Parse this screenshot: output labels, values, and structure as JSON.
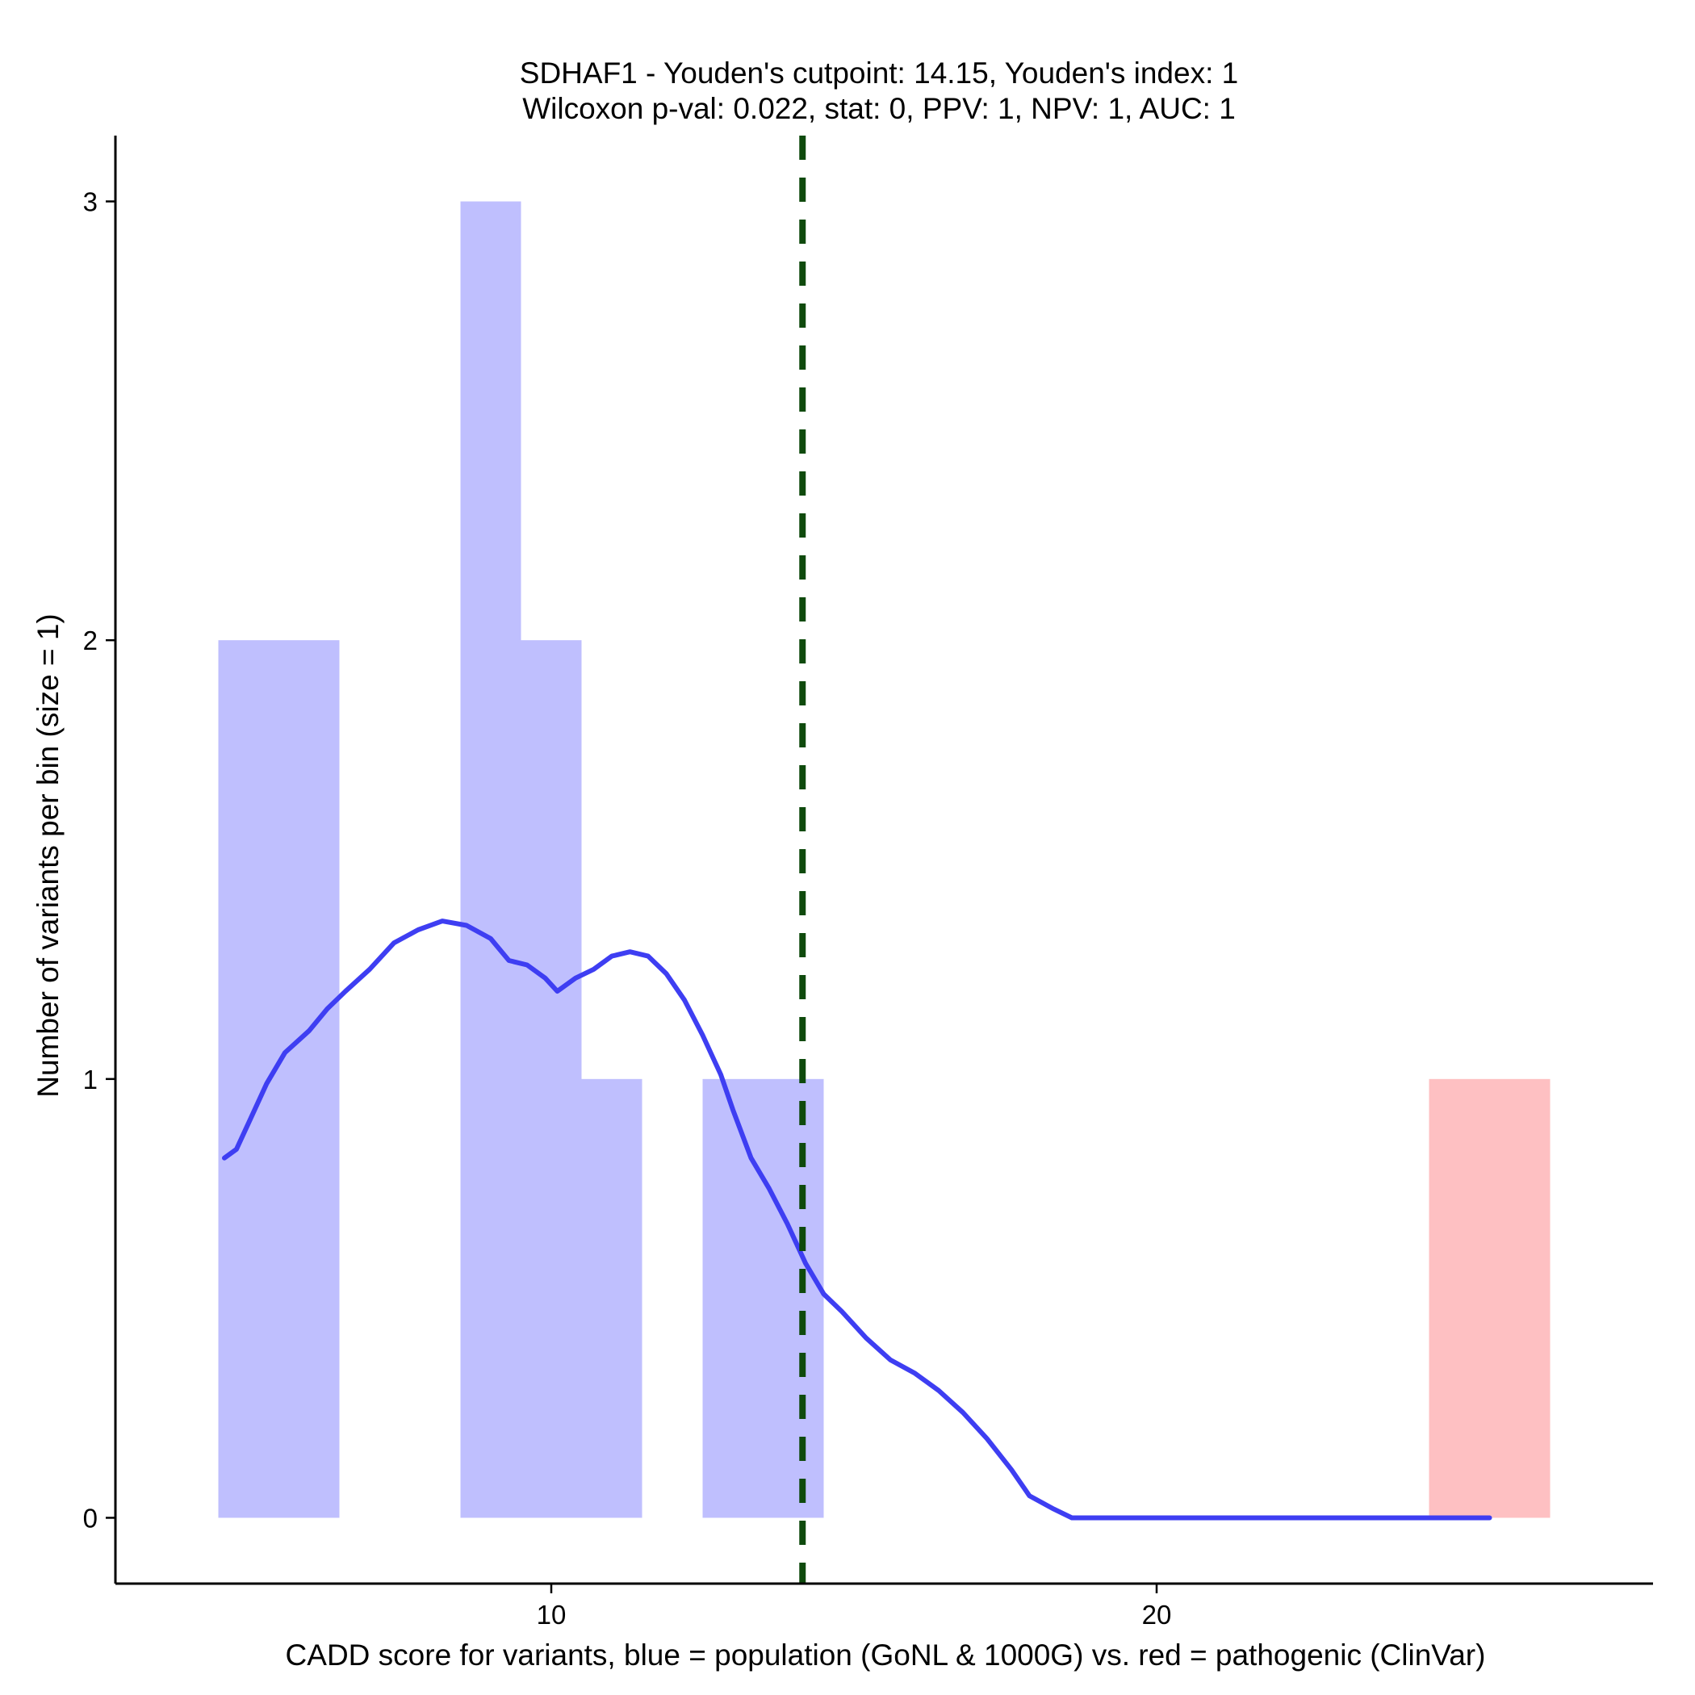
{
  "chart_data": {
    "type": "bar",
    "title": [
      "SDHAF1 - Youden's cutpoint: 14.15, Youden's index: 1",
      "Wilcoxon p-val: 0.022, stat: 0, PPV: 1, NPV: 1, AUC: 1"
    ],
    "xlabel": "CADD score for variants, blue = population (GoNL & 1000G) vs. red = pathogenic (ClinVar)",
    "ylabel": "Number of variants per bin (size = 1)",
    "xlim": [
      2.8,
      28.2
    ],
    "ylim": [
      -0.15,
      3.15
    ],
    "x_ticks": [
      10,
      20
    ],
    "y_ticks": [
      0,
      1,
      2,
      3
    ],
    "grid": false,
    "bin_width": 1,
    "series": [
      {
        "color": "#bfbffe",
        "bars": [
          {
            "x": 5,
            "count": 2
          },
          {
            "x": 6,
            "count": 2
          },
          {
            "x": 9,
            "count": 3
          },
          {
            "x": 10,
            "count": 2
          },
          {
            "x": 11,
            "count": 1
          },
          {
            "x": 13,
            "count": 1
          },
          {
            "x": 14,
            "count": 1
          }
        ]
      },
      {
        "color": "#fec0c2",
        "bars": [
          {
            "x": 25,
            "count": 1
          },
          {
            "x": 26,
            "count": 1
          }
        ]
      }
    ],
    "density_curve": {
      "color": "#3e3ef2",
      "points": [
        [
          4.6,
          0.82
        ],
        [
          4.8,
          0.84
        ],
        [
          5.0,
          0.9
        ],
        [
          5.3,
          0.99
        ],
        [
          5.6,
          1.06
        ],
        [
          6.0,
          1.11
        ],
        [
          6.3,
          1.16
        ],
        [
          6.6,
          1.2
        ],
        [
          7.0,
          1.25
        ],
        [
          7.4,
          1.31
        ],
        [
          7.8,
          1.34
        ],
        [
          8.2,
          1.36
        ],
        [
          8.6,
          1.35
        ],
        [
          9.0,
          1.32
        ],
        [
          9.3,
          1.27
        ],
        [
          9.6,
          1.26
        ],
        [
          9.9,
          1.23
        ],
        [
          10.1,
          1.2
        ],
        [
          10.4,
          1.23
        ],
        [
          10.7,
          1.25
        ],
        [
          11.0,
          1.28
        ],
        [
          11.3,
          1.29
        ],
        [
          11.6,
          1.28
        ],
        [
          11.9,
          1.24
        ],
        [
          12.2,
          1.18
        ],
        [
          12.5,
          1.1
        ],
        [
          12.8,
          1.01
        ],
        [
          13.0,
          0.93
        ],
        [
          13.3,
          0.82
        ],
        [
          13.6,
          0.75
        ],
        [
          13.9,
          0.67
        ],
        [
          14.2,
          0.58
        ],
        [
          14.5,
          0.51
        ],
        [
          14.8,
          0.47
        ],
        [
          15.2,
          0.41
        ],
        [
          15.6,
          0.36
        ],
        [
          16.0,
          0.33
        ],
        [
          16.4,
          0.29
        ],
        [
          16.8,
          0.24
        ],
        [
          17.2,
          0.18
        ],
        [
          17.6,
          0.11
        ],
        [
          17.9,
          0.05
        ],
        [
          18.3,
          0.02
        ],
        [
          18.6,
          0.0
        ],
        [
          20.0,
          0.0
        ],
        [
          22.0,
          0.0
        ],
        [
          24.0,
          0.0
        ],
        [
          25.5,
          0.0
        ]
      ]
    },
    "cutpoint": {
      "x": 14.15,
      "color": "#0f4a0d",
      "style": "dashed"
    }
  }
}
